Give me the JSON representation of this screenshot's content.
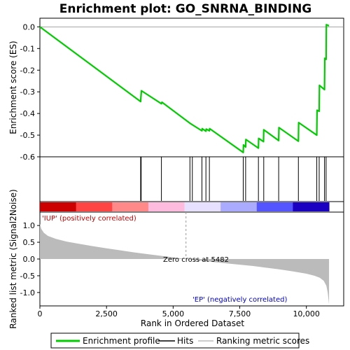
{
  "chart_data": {
    "type": "line",
    "title": "Enrichment plot: GO_SNRNA_BINDING",
    "xlabel": "Rank in Ordered Dataset",
    "xlim": [
      0,
      11400
    ],
    "x_ticks": [
      0,
      2500,
      5000,
      7500,
      10000
    ],
    "x_tick_labels": [
      "0",
      "2,500",
      "5,000",
      "7,500",
      "10,000"
    ],
    "panels": {
      "es": {
        "ylabel": "Enrichment score (ES)",
        "ylim": [
          -0.6,
          0.04
        ],
        "y_ticks": [
          0.0,
          -0.1,
          -0.2,
          -0.3,
          -0.4,
          -0.5,
          -0.6
        ],
        "y_tick_labels": [
          "0.0",
          "-0.1",
          "-0.2",
          "-0.3",
          "-0.4",
          "-0.5",
          "-0.6"
        ]
      },
      "metric": {
        "ylabel": "Ranked list metric (Signal2Noise)",
        "ylim": [
          -1.4,
          1.4
        ],
        "y_ticks": [
          1.0,
          0.5,
          0.0,
          -0.5,
          -1.0
        ],
        "y_tick_labels": [
          "1.0",
          "0.5",
          "0.0",
          "-0.5",
          "-1.0"
        ]
      }
    },
    "series": [
      {
        "name": "Enrichment profile",
        "color": "#00cc00",
        "x": [
          0,
          3780,
          3790,
          3800,
          3810,
          4560,
          4580,
          5630,
          6080,
          6090,
          6230,
          6240,
          6360,
          6370,
          7630,
          7640,
          7720,
          7730,
          8200,
          8210,
          8390,
          8400,
          8960,
          8970,
          9700,
          9710,
          10390,
          10400,
          10480,
          10490,
          10680,
          10690,
          10740,
          10750,
          10850
        ],
        "y": [
          0.0,
          -0.345,
          -0.325,
          -0.31,
          -0.295,
          -0.355,
          -0.348,
          -0.445,
          -0.48,
          -0.47,
          -0.482,
          -0.472,
          -0.48,
          -0.47,
          -0.58,
          -0.545,
          -0.555,
          -0.52,
          -0.56,
          -0.515,
          -0.53,
          -0.475,
          -0.525,
          -0.465,
          -0.528,
          -0.442,
          -0.5,
          -0.385,
          -0.39,
          -0.27,
          -0.29,
          -0.145,
          -0.15,
          0.01,
          0.005
        ]
      }
    ],
    "hits": [
      3780,
      3800,
      4560,
      5630,
      5720,
      6080,
      6230,
      6360,
      7630,
      7720,
      8200,
      8400,
      8960,
      9700,
      10390,
      10480,
      10680,
      10740
    ],
    "metric_curve": {
      "x": [
        0,
        50,
        150,
        300,
        600,
        1000,
        1500,
        2000,
        2500,
        3000,
        3500,
        4000,
        4500,
        5000,
        5482,
        6000,
        6500,
        7000,
        7500,
        8000,
        8500,
        9000,
        9500,
        10000,
        10300,
        10500,
        10650,
        10750,
        10800,
        10850
      ],
      "y": [
        1.05,
        0.9,
        0.78,
        0.69,
        0.6,
        0.52,
        0.45,
        0.38,
        0.32,
        0.26,
        0.2,
        0.15,
        0.1,
        0.05,
        0.0,
        -0.05,
        -0.09,
        -0.13,
        -0.17,
        -0.21,
        -0.26,
        -0.31,
        -0.37,
        -0.44,
        -0.5,
        -0.56,
        -0.65,
        -0.8,
        -1.0,
        -1.35
      ]
    },
    "heatmap_stops": [
      "#cc0000",
      "#ff4444",
      "#ff8888",
      "#ffbbdd",
      "#e8e0ff",
      "#aaaaff",
      "#5555ff",
      "#1a00c0"
    ],
    "annotations": {
      "positive": "'IUP' (positively correlated)",
      "negative": "'EP' (negatively correlated)",
      "zero_cross": "Zero cross at 5482",
      "positive_color": "#cc0000",
      "negative_color": "#0000cc"
    },
    "legend": {
      "placement": "bottom",
      "items": [
        {
          "label": "Enrichment profile",
          "color": "#00cc00",
          "kind": "thick-line"
        },
        {
          "label": "Hits",
          "color": "#000000",
          "kind": "line"
        },
        {
          "label": "Ranking metric scores",
          "color": "#bbbbbb",
          "kind": "line"
        }
      ]
    }
  }
}
